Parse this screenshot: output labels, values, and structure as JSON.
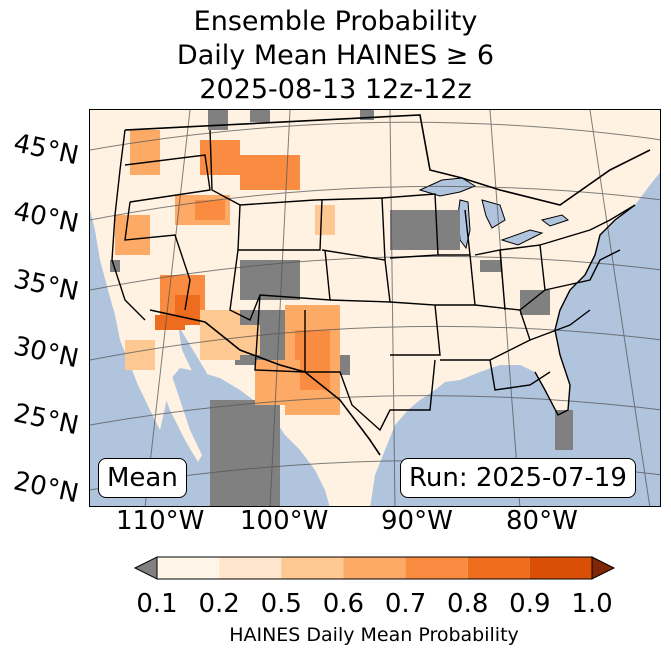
{
  "title": {
    "line1": "Ensemble Probability",
    "line2": "Daily Mean HAINES ≥ 6",
    "line3": "2025-08-13 12z-12z"
  },
  "map": {
    "latitude_labels": [
      "45°N",
      "40°N",
      "35°N",
      "30°N",
      "25°N",
      "20°N"
    ],
    "longitude_labels": [
      "110°W",
      "100°W",
      "90°W",
      "80°W"
    ],
    "mean_label": "Mean",
    "run_label": "Run: 2025-07-19",
    "colors": {
      "ocean": "#b0c4de",
      "land": "#fff2e2",
      "below_range": "#808080"
    }
  },
  "colorbar": {
    "ticks": [
      "0.1",
      "0.2",
      "0.5",
      "0.6",
      "0.7",
      "0.8",
      "0.9",
      "1.0"
    ],
    "colors": [
      "#fff4e8",
      "#fee6cc",
      "#fdc892",
      "#fcaa66",
      "#f98c40",
      "#ee6c1e",
      "#d94f06"
    ],
    "under_color": "#808080",
    "over_color": "#7f2704",
    "label": "HAINES Daily Mean Probability"
  }
}
